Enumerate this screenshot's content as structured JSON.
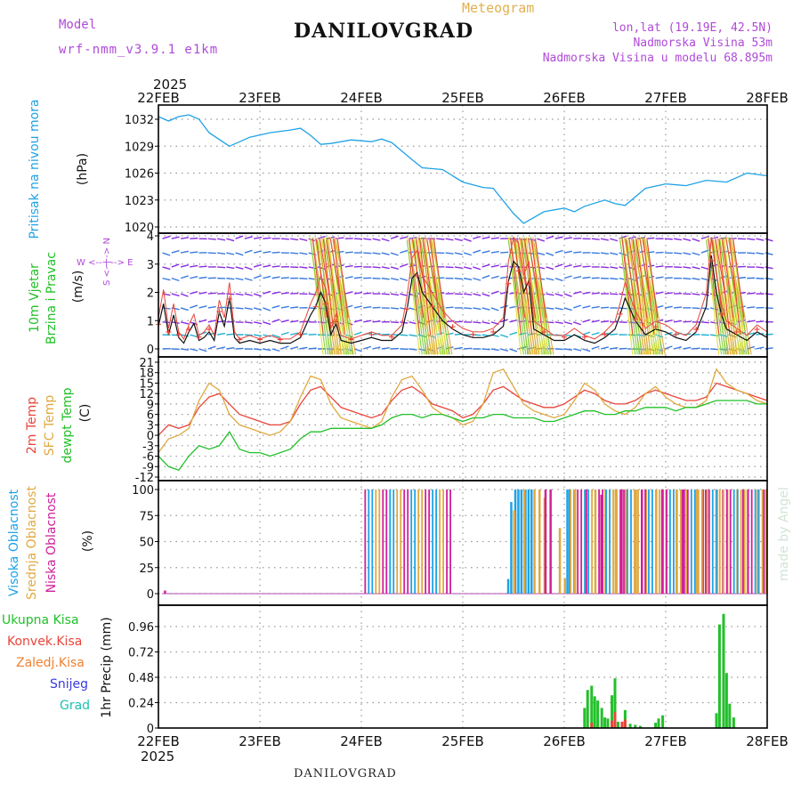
{
  "header": {
    "model_label": "Model",
    "model_name": "wrf-nmm_v3.9.1  e1km",
    "title": "DANILOVGRAD",
    "subtitle": "Meteogram",
    "lonlat": "lon,lat (19.19E, 42.5N)",
    "elevation": "Nadmorska Visina 53m",
    "model_elevation": "Nadmorska Visina u modelu 68.895m",
    "year_top": "2025",
    "year_bottom": "2025",
    "watermark": "made by Angel"
  },
  "footer": {
    "station": "DANILOVGRAD"
  },
  "colors": {
    "pressure": "#1fa2e6",
    "temp2m": "#e8443a",
    "sfc": "#e0a840",
    "dewpt": "#22c02a",
    "high_cloud": "#1fa2e6",
    "mid_cloud": "#e0a840",
    "low_cloud": "#d0209a",
    "precip_total": "#22c02a",
    "precip_conv": "#e8443a",
    "snow": "#3a3ae0",
    "grad": "#20c0b0"
  },
  "chart_data": [
    {
      "type": "line",
      "title": "",
      "ylabel_left": "Pritisak na nivou mora",
      "ylabel_unit": "(hPa)",
      "x_ticks": [
        "22FEB",
        "23FEB",
        "24FEB",
        "25FEB",
        "26FEB",
        "27FEB",
        "28FEB"
      ],
      "y_ticks": [
        "1020",
        "1023",
        "1026",
        "1029",
        "1032"
      ],
      "ylim": [
        1019.8,
        1033.5
      ],
      "series": [
        {
          "x": [
            0,
            0.1,
            0.2,
            0.3,
            0.4,
            0.5,
            0.7,
            0.9,
            1.1,
            1.3,
            1.4,
            1.5,
            1.6,
            1.7,
            1.9,
            2.1,
            2.2,
            2.3,
            2.5,
            2.6,
            2.8,
            3.0,
            3.2,
            3.3,
            3.5,
            3.6,
            3.8,
            4.0,
            4.1,
            4.2,
            4.4,
            4.5,
            4.6,
            4.8,
            5.0,
            5.2,
            5.4,
            5.6,
            5.8,
            6.0
          ],
          "y": [
            1032.3,
            1031.8,
            1032.3,
            1032.5,
            1032.0,
            1030.5,
            1029.0,
            1030.0,
            1030.5,
            1030.8,
            1031.0,
            1030.2,
            1029.2,
            1029.3,
            1029.7,
            1029.5,
            1029.8,
            1029.4,
            1027.5,
            1026.6,
            1026.4,
            1025.0,
            1024.4,
            1024.3,
            1021.5,
            1020.4,
            1021.7,
            1022.1,
            1021.7,
            1022.3,
            1023.0,
            1022.6,
            1022.4,
            1024.3,
            1024.8,
            1024.6,
            1025.2,
            1025.0,
            1026.0,
            1025.7
          ]
        }
      ]
    },
    {
      "type": "line",
      "title": "",
      "ylabel_left": "10m Vjetar",
      "ylabel_left2": "Brzina i Pravac",
      "ylabel_unit": "(m/s)",
      "compass": "W  <-- | -->  E",
      "compass_ns": "S <- | -> N",
      "y_ticks": [
        "0",
        "1",
        "2",
        "3",
        "4"
      ],
      "ylim": [
        -0.25,
        4.0
      ],
      "series": [
        {
          "name": "",
          "x": [
            0,
            0.05,
            0.1,
            0.15,
            0.2,
            0.25,
            0.3,
            0.35,
            0.4,
            0.45,
            0.5,
            0.55,
            0.6,
            0.65,
            0.7,
            0.75,
            0.8,
            0.9,
            1.0,
            1.1,
            1.2,
            1.3,
            1.4,
            1.5,
            1.55,
            1.6,
            1.65,
            1.7,
            1.75,
            1.8,
            1.9,
            2.0,
            2.1,
            2.2,
            2.3,
            2.4,
            2.45,
            2.5,
            2.55,
            2.6,
            2.7,
            2.8,
            2.9,
            3.0,
            3.1,
            3.2,
            3.3,
            3.4,
            3.45,
            3.5,
            3.55,
            3.6,
            3.65,
            3.7,
            3.8,
            3.9,
            4.0,
            4.1,
            4.2,
            4.3,
            4.4,
            4.5,
            4.55,
            4.6,
            4.7,
            4.8,
            4.9,
            5.0,
            5.1,
            5.2,
            5.3,
            5.4,
            5.45,
            5.5,
            5.55,
            5.6,
            5.7,
            5.8,
            5.9,
            6.0
          ],
          "y": [
            0.8,
            1.6,
            0.5,
            1.2,
            0.4,
            0.2,
            0.6,
            0.9,
            0.3,
            0.4,
            0.6,
            0.3,
            1.3,
            0.8,
            1.8,
            0.4,
            0.2,
            0.3,
            0.2,
            0.3,
            0.2,
            0.2,
            0.4,
            1.2,
            1.5,
            2.0,
            1.6,
            0.5,
            0.9,
            0.3,
            0.2,
            0.3,
            0.4,
            0.3,
            0.3,
            0.6,
            1.4,
            2.5,
            2.7,
            2.0,
            1.5,
            1.0,
            0.7,
            0.5,
            0.4,
            0.4,
            0.5,
            0.8,
            2.4,
            3.1,
            2.9,
            2.0,
            2.4,
            0.7,
            0.5,
            0.3,
            0.3,
            0.5,
            0.3,
            0.2,
            0.4,
            0.7,
            1.2,
            1.8,
            1.0,
            0.5,
            0.7,
            0.6,
            0.4,
            0.3,
            0.6,
            1.5,
            3.3,
            2.0,
            1.2,
            0.7,
            0.5,
            0.3,
            0.6,
            0.4
          ]
        }
      ]
    },
    {
      "type": "line",
      "title": "",
      "ylabel_left": "2m Temp",
      "ylabel_left2": "SFC Temp",
      "ylabel_left3": "dewpt Temp",
      "ylabel_unit": "(C)",
      "y_ticks": [
        "-12",
        "-9",
        "-6",
        "-3",
        "0",
        "3",
        "6",
        "9",
        "12",
        "15",
        "18",
        "21"
      ],
      "ylim": [
        -12,
        21
      ],
      "series": [
        {
          "name": "2m Temp",
          "x": [
            0,
            0.1,
            0.2,
            0.3,
            0.4,
            0.5,
            0.6,
            0.7,
            0.8,
            0.9,
            1.0,
            1.1,
            1.2,
            1.3,
            1.4,
            1.5,
            1.6,
            1.7,
            1.8,
            1.9,
            2.0,
            2.1,
            2.2,
            2.3,
            2.4,
            2.5,
            2.6,
            2.7,
            2.8,
            2.9,
            3.0,
            3.1,
            3.2,
            3.3,
            3.4,
            3.5,
            3.6,
            3.7,
            3.8,
            3.9,
            4.0,
            4.1,
            4.2,
            4.3,
            4.4,
            4.5,
            4.6,
            4.7,
            4.8,
            4.9,
            5.0,
            5.1,
            5.2,
            5.3,
            5.4,
            5.5,
            5.6,
            5.7,
            5.8,
            5.9,
            6.0
          ],
          "y": [
            0,
            3,
            2,
            3,
            8,
            11,
            12,
            9,
            6,
            5,
            4,
            3,
            3,
            4,
            9,
            13,
            14,
            11,
            8,
            7,
            6,
            5,
            6,
            10,
            13,
            14,
            12,
            9,
            8,
            7,
            5,
            6,
            9,
            13,
            14,
            12,
            10,
            9,
            8,
            8,
            9,
            11,
            13,
            12,
            10,
            9,
            9,
            10,
            12,
            13,
            12,
            11,
            10,
            10,
            11,
            15,
            14,
            13,
            12,
            11,
            10
          ]
        },
        {
          "name": "SFC Temp",
          "x": [
            0,
            0.1,
            0.2,
            0.3,
            0.4,
            0.5,
            0.6,
            0.7,
            0.8,
            0.9,
            1.0,
            1.1,
            1.2,
            1.3,
            1.4,
            1.5,
            1.6,
            1.7,
            1.8,
            1.9,
            2.0,
            2.1,
            2.2,
            2.3,
            2.4,
            2.5,
            2.6,
            2.7,
            2.8,
            2.9,
            3.0,
            3.1,
            3.2,
            3.3,
            3.4,
            3.5,
            3.6,
            3.7,
            3.8,
            3.9,
            4.0,
            4.1,
            4.2,
            4.3,
            4.4,
            4.5,
            4.6,
            4.7,
            4.8,
            4.9,
            5.0,
            5.1,
            5.2,
            5.3,
            5.4,
            5.5,
            5.6,
            5.7,
            5.8,
            5.9,
            6.0
          ],
          "y": [
            -5,
            -1,
            0,
            2,
            10,
            15,
            13,
            6,
            3,
            2,
            1,
            0,
            1,
            4,
            11,
            17,
            16,
            9,
            5,
            4,
            3,
            2,
            4,
            11,
            16,
            17,
            13,
            8,
            6,
            5,
            3,
            4,
            9,
            18,
            19,
            14,
            9,
            7,
            6,
            5,
            6,
            10,
            15,
            13,
            9,
            7,
            6,
            8,
            12,
            14,
            11,
            9,
            8,
            8,
            10,
            19,
            15,
            13,
            12,
            10,
            9
          ]
        },
        {
          "name": "dewpt Temp",
          "x": [
            0,
            0.1,
            0.2,
            0.3,
            0.4,
            0.5,
            0.6,
            0.7,
            0.8,
            0.9,
            1.0,
            1.1,
            1.2,
            1.3,
            1.4,
            1.5,
            1.6,
            1.7,
            1.8,
            1.9,
            2.0,
            2.1,
            2.2,
            2.3,
            2.4,
            2.5,
            2.6,
            2.7,
            2.8,
            2.9,
            3.0,
            3.1,
            3.2,
            3.3,
            3.4,
            3.5,
            3.6,
            3.7,
            3.8,
            3.9,
            4.0,
            4.1,
            4.2,
            4.3,
            4.4,
            4.5,
            4.6,
            4.7,
            4.8,
            4.9,
            5.0,
            5.1,
            5.2,
            5.3,
            5.4,
            5.5,
            5.6,
            5.7,
            5.8,
            5.9,
            6.0
          ],
          "y": [
            -6,
            -9,
            -10,
            -6,
            -3,
            -4,
            -3,
            1,
            -4,
            -5,
            -5,
            -6,
            -5,
            -4,
            -1,
            1,
            1,
            2,
            2,
            2,
            2,
            2,
            3,
            5,
            6,
            6,
            5,
            6,
            6,
            5,
            4,
            5,
            5,
            6,
            6,
            5,
            5,
            5,
            4,
            4,
            5,
            6,
            7,
            7,
            6,
            6,
            7,
            7,
            8,
            8,
            8,
            7,
            8,
            8,
            9,
            10,
            10,
            10,
            10,
            9,
            9
          ]
        }
      ]
    },
    {
      "type": "bar",
      "title": "",
      "ylabel_left": "Visoka Oblacnost",
      "ylabel_left2": "Srednja Oblacnost",
      "ylabel_left3": "Niska Oblacnost",
      "ylabel_unit": "(%)",
      "y_ticks": [
        "0",
        "25",
        "50",
        "75",
        "100"
      ],
      "ylim": [
        -3,
        100
      ],
      "series": [
        {
          "name": "Visoka Oblacnost",
          "x": [
            3.45,
            3.48,
            3.52,
            3.55,
            3.58,
            3.62,
            3.65,
            3.68,
            4.05,
            4.1
          ],
          "values": [
            14,
            88,
            100,
            100,
            100,
            100,
            100,
            100,
            100,
            100
          ]
        },
        {
          "name": "Srednja Oblacnost",
          "x": [
            3.5,
            3.6,
            3.7,
            3.75,
            3.8,
            3.95,
            4.0,
            4.1,
            4.2,
            4.3,
            4.4,
            4.5,
            4.6,
            4.7,
            4.8,
            4.9,
            5.0,
            5.1,
            5.2,
            5.3,
            5.4,
            5.5,
            5.6,
            5.7,
            5.8,
            5.9
          ],
          "values": [
            80,
            100,
            100,
            100,
            92,
            63,
            15,
            100,
            100,
            100,
            100,
            100,
            100,
            100,
            100,
            100,
            100,
            100,
            100,
            100,
            100,
            100,
            100,
            100,
            100,
            100
          ]
        },
        {
          "name": "Niska Oblacnost",
          "x": [
            0.05,
            3.8,
            3.85,
            4.2,
            4.35,
            4.55,
            4.75,
            4.95,
            5.15,
            5.35,
            5.55,
            5.75,
            5.95
          ],
          "values": [
            3,
            100,
            100,
            100,
            95,
            100,
            100,
            100,
            100,
            100,
            100,
            100,
            100
          ]
        }
      ]
    },
    {
      "type": "bar",
      "title": "",
      "ylabel_left": "1hr Precip (mm)",
      "legend": [
        "Ukupna Kisa",
        "Konvek.Kisa",
        "Zaledj.Kisa",
        "Snijeg",
        "Grad"
      ],
      "y_ticks": [
        "0",
        "0.24",
        "0.48",
        "0.72",
        "0.96"
      ],
      "ylim": [
        0,
        1.1
      ],
      "series": [
        {
          "name": "Ukupna Kisa",
          "x": [
            4.2,
            4.23,
            4.27,
            4.3,
            4.33,
            4.37,
            4.4,
            4.43,
            4.47,
            4.5,
            4.53,
            4.57,
            4.6,
            4.65,
            4.7,
            4.75,
            4.9,
            4.93,
            4.97,
            5.5,
            5.53,
            5.57,
            5.6,
            5.63,
            5.67
          ],
          "values": [
            0.19,
            0.36,
            0.4,
            0.3,
            0.26,
            0.19,
            0.1,
            0.09,
            0.31,
            0.47,
            0.06,
            0.05,
            0.17,
            0.04,
            0.03,
            0.02,
            0.05,
            0.09,
            0.12,
            0.14,
            0.98,
            1.08,
            0.52,
            0.23,
            0.1
          ]
        },
        {
          "name": "Konvek.Kisa",
          "x": [
            4.27,
            4.47,
            4.5,
            4.57,
            4.6
          ],
          "values": [
            0.05,
            0.07,
            0.15,
            0.06,
            0.08
          ]
        }
      ]
    }
  ]
}
